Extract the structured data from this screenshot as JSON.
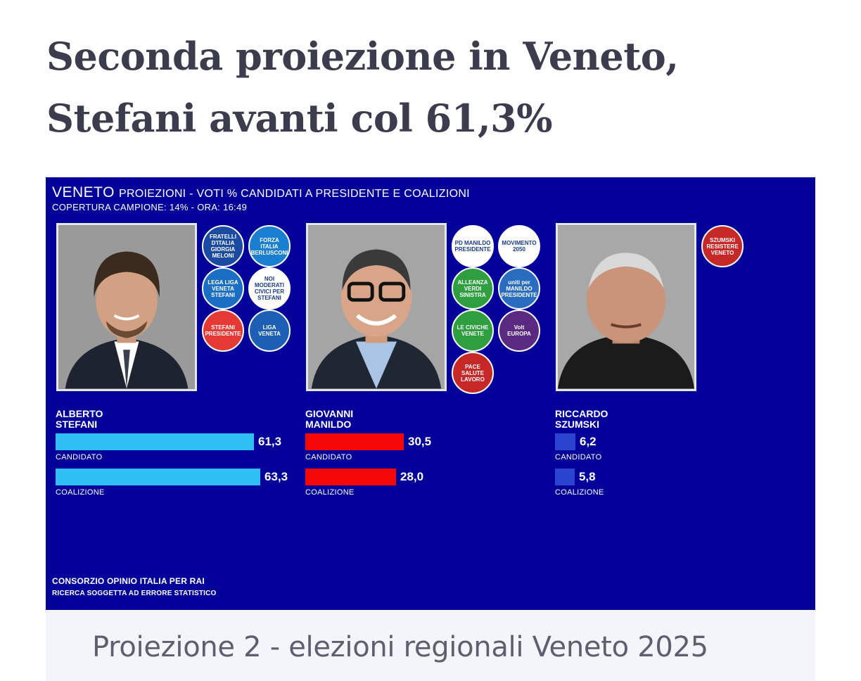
{
  "article": {
    "headline": "Seconda proiezione in Veneto, Stefani avanti col 61,3%",
    "caption": "Proiezione 2 - elezioni regionali Veneto 2025"
  },
  "graphic": {
    "region": "VENETO",
    "subtitle": "PROIEZIONI - VOTI % CANDIDATI A PRESIDENTE E COALIZIONI",
    "coverage": "COPERTURA CAMPIONE: 14%  - ORA: 16:49",
    "footer_1": "CONSORZIO OPINIO ITALIA PER RAI",
    "footer_2": "RICERCA SOGGETTA AD ERRORE STATISTICO",
    "candidate_label": "CANDIDATO",
    "coalition_label": "COALIZIONE",
    "bar_scale_max": 100,
    "candidates": [
      {
        "name": "ALBERTO\nSTEFANI",
        "bar_color": "#2ebff5",
        "candidate_pct": 61.3,
        "candidate_text": "61,3",
        "coalition_pct": 63.3,
        "coalition_text": "63,3",
        "logos": [
          {
            "text": "FRATELLI D'ITALIA GIORGIA MELONI",
            "bg": "#1b4aa3"
          },
          {
            "text": "FORZA ITALIA BERLUSCONI",
            "bg": "#1a7fd0"
          },
          {
            "text": "LEGA LIGA VENETA STEFANI",
            "bg": "#1a6fc4"
          },
          {
            "text": "NOI MODERATI CIVICI PER STEFANI",
            "bg": "#ffffff"
          },
          {
            "text": "STEFANI PRESIDENTE",
            "bg": "#e53935"
          },
          {
            "text": "LIGA VENETA",
            "bg": "#1c5fb5"
          }
        ]
      },
      {
        "name": "GIOVANNI\nMANILDO",
        "bar_color": "#f40707",
        "candidate_pct": 30.5,
        "candidate_text": "30,5",
        "coalition_pct": 28.0,
        "coalition_text": "28,0",
        "logos": [
          {
            "text": "PD MANILDO PRESIDENTE",
            "bg": "#ffffff"
          },
          {
            "text": "MOVIMENTO 2050",
            "bg": "#ffffff"
          },
          {
            "text": "ALLEANZA VERDI SINISTRA",
            "bg": "#2e9e3f"
          },
          {
            "text": "uniti per MANILDO PRESIDENTE",
            "bg": "#2a6cc0"
          },
          {
            "text": "LE CIVICHE VENETE",
            "bg": "#2e9e3f"
          },
          {
            "text": "Volt EUROPA",
            "bg": "#5a2a82"
          },
          {
            "text": "PACE SALUTE LAVORO",
            "bg": "#c62828"
          }
        ]
      },
      {
        "name": "RICCARDO\nSZUMSKI",
        "bar_color": "#2a44d0",
        "candidate_pct": 6.2,
        "candidate_text": "6,2",
        "coalition_pct": 5.8,
        "coalition_text": "5,8",
        "logos": [
          {
            "text": "SZUMSKI RESISTERE VENETO",
            "bg": "#c62828"
          }
        ]
      }
    ]
  }
}
